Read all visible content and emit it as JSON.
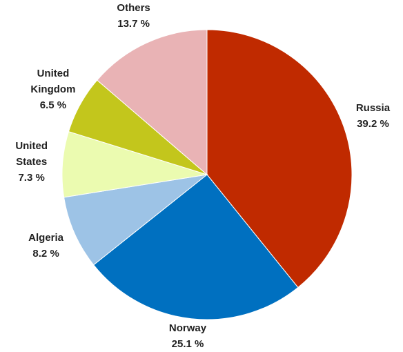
{
  "chart_data": {
    "type": "pie",
    "categories": [
      "Russia",
      "Norway",
      "Algeria",
      "United States",
      "United Kingdom",
      "Others"
    ],
    "values": [
      39.2,
      25.1,
      8.2,
      7.3,
      6.5,
      13.7
    ],
    "value_labels": [
      "39.2 %",
      "25.1 %",
      "8.2 %",
      "7.3 %",
      "6.5 %",
      "13.7 %"
    ],
    "colors": [
      "#c02a00",
      "#0070c0",
      "#9dc3e6",
      "#ebfbb0",
      "#c3c61c",
      "#e9b3b5"
    ]
  }
}
